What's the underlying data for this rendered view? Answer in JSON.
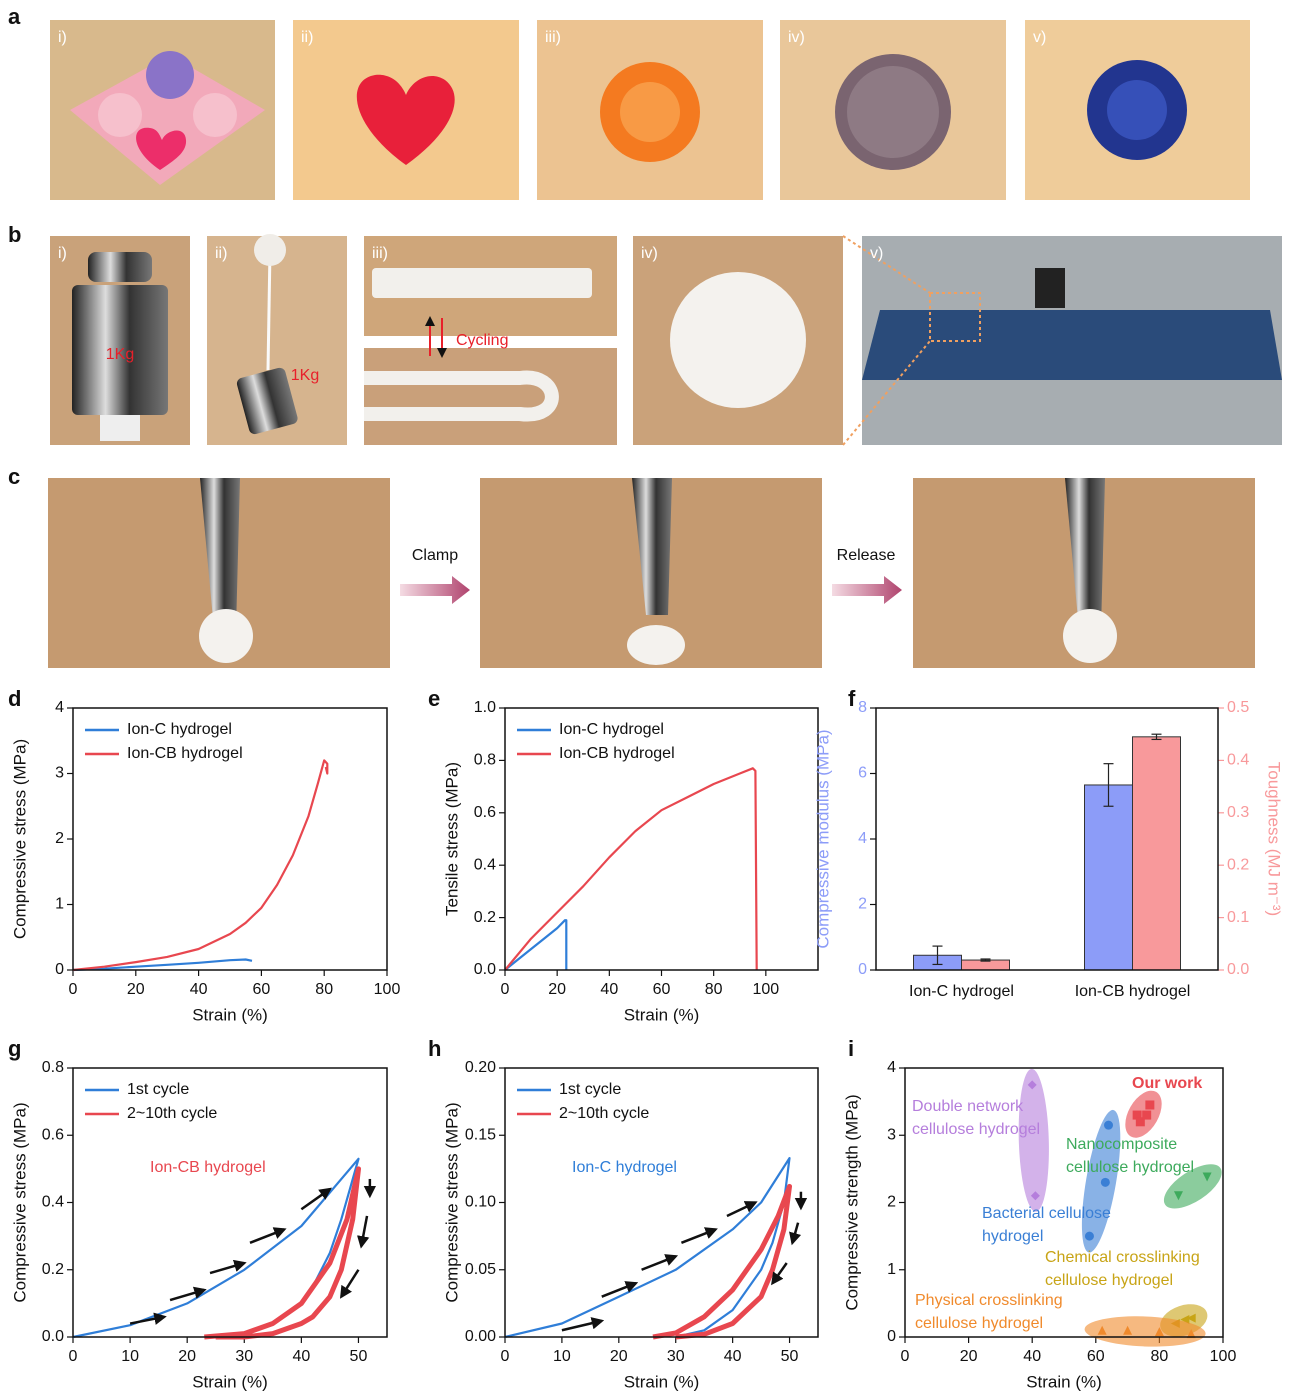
{
  "panels": {
    "a": {
      "letter": "a",
      "labels": [
        "i)",
        "ii)",
        "iii)",
        "iv)",
        "v)"
      ]
    },
    "b": {
      "letter": "b",
      "labels": [
        "i)",
        "ii)",
        "iii)",
        "iv)",
        "v)"
      ],
      "weight_label_1": "1Kg",
      "weight_label_2": "1Kg",
      "cycling": "Cycling"
    },
    "c": {
      "letter": "c",
      "clamp": "Clamp",
      "release": "Release"
    }
  },
  "chart_data": [
    {
      "type": "line",
      "panel": "d",
      "xlabel": "Strain (%)",
      "ylabel": "Compressive stress (MPa)",
      "xlim": [
        0,
        100
      ],
      "xticks": [
        0,
        20,
        40,
        60,
        80,
        100
      ],
      "ylim": [
        0,
        4
      ],
      "yticks": [
        0,
        1,
        2,
        3,
        4
      ],
      "legend": "upper left",
      "series": [
        {
          "name": "Ion-C hydrogel",
          "color": "#2f7ed8",
          "x": [
            0,
            10,
            20,
            30,
            40,
            50,
            55,
            57
          ],
          "values": [
            0,
            0.02,
            0.05,
            0.08,
            0.11,
            0.15,
            0.16,
            0.14
          ]
        },
        {
          "name": "Ion-CB hydrogel",
          "color": "#e8474f",
          "x": [
            0,
            10,
            20,
            30,
            40,
            50,
            55,
            60,
            65,
            70,
            75,
            78,
            80,
            81,
            81,
            80.5
          ],
          "values": [
            0,
            0.05,
            0.12,
            0.2,
            0.32,
            0.55,
            0.72,
            0.95,
            1.3,
            1.75,
            2.35,
            2.85,
            3.2,
            3.15,
            3.0,
            3.1
          ]
        }
      ]
    },
    {
      "type": "line",
      "panel": "e",
      "xlabel": "Strain (%)",
      "ylabel": "Tensile stress (MPa)",
      "xlim": [
        0,
        120
      ],
      "xticks": [
        0,
        20,
        40,
        60,
        80,
        100
      ],
      "ylim": [
        0,
        1
      ],
      "yticks": [
        {
          "value": 0,
          "label": "0.0"
        },
        0.2,
        0.4,
        0.6,
        0.8,
        {
          "value": 1,
          "label": "1.0"
        }
      ],
      "legend": "upper left",
      "series": [
        {
          "name": "Ion-C hydrogel",
          "color": "#2f7ed8",
          "x": [
            0,
            5,
            10,
            15,
            20,
            23,
            23.5,
            23.5
          ],
          "values": [
            0,
            0.04,
            0.08,
            0.12,
            0.16,
            0.19,
            0.19,
            0
          ]
        },
        {
          "name": "Ion-CB hydrogel",
          "color": "#e8474f",
          "x": [
            0,
            10,
            20,
            30,
            40,
            50,
            60,
            70,
            80,
            90,
            95,
            96,
            96.5
          ],
          "values": [
            0,
            0.12,
            0.22,
            0.32,
            0.43,
            0.53,
            0.61,
            0.66,
            0.71,
            0.75,
            0.77,
            0.76,
            0
          ]
        }
      ]
    },
    {
      "type": "bar",
      "panel": "f",
      "ylabel": "Compressive modulus (MPa)",
      "y2label": "Toughness (MJ m⁻³)",
      "categories": [
        "Ion-C hydrogel",
        "Ion-CB hydrogel"
      ],
      "ylim": [
        0,
        8
      ],
      "yticks": [
        0,
        2,
        4,
        6,
        8
      ],
      "y2lim": [
        0,
        0.5
      ],
      "y2ticks": [
        {
          "value": 0,
          "label": "0.0"
        },
        0.1,
        0.2,
        0.3,
        0.4,
        0.5
      ],
      "series": [
        {
          "color": "#8c9cf8",
          "values": [
            0.45,
            5.65
          ],
          "errors": [
            0.28,
            0.65
          ]
        },
        {
          "color": "#f8999b",
          "axis": "y2",
          "values": [
            0.019,
            0.445
          ],
          "errors": [
            0.002,
            0.005
          ]
        }
      ]
    },
    {
      "type": "line",
      "panel": "g",
      "xlabel": "Strain (%)",
      "ylabel": "Compressive stress (MPa)",
      "xlim": [
        0,
        55
      ],
      "xticks": [
        0,
        10,
        20,
        30,
        40,
        50
      ],
      "ylim": [
        0,
        0.8
      ],
      "yticks": [
        {
          "value": 0,
          "label": "0.0"
        },
        0.2,
        0.4,
        0.6,
        0.8
      ],
      "legend": "upper left",
      "annotation": {
        "text": "Ion-CB hydrogel",
        "color": "#e8474f"
      },
      "series": [
        {
          "name": "1st cycle",
          "color": "#2f7ed8",
          "x": [
            0,
            10,
            20,
            30,
            40,
            50,
            47,
            45,
            42,
            40,
            35,
            30,
            25,
            24
          ],
          "values": [
            0,
            0.035,
            0.1,
            0.2,
            0.33,
            0.53,
            0.35,
            0.25,
            0.15,
            0.1,
            0.04,
            0.01,
            0,
            0
          ]
        },
        {
          "name": "2~10th cycle",
          "color": "#e8474f",
          "x": [
            23,
            30,
            35,
            40,
            45,
            48,
            50,
            49,
            47,
            45,
            42,
            40,
            35,
            30,
            25
          ],
          "values": [
            0,
            0.01,
            0.04,
            0.1,
            0.22,
            0.35,
            0.5,
            0.35,
            0.2,
            0.12,
            0.06,
            0.04,
            0.01,
            0,
            0
          ]
        }
      ]
    },
    {
      "type": "line",
      "panel": "h",
      "xlabel": "Strain (%)",
      "ylabel": "Compressive stress (MPa)",
      "xlim": [
        0,
        55
      ],
      "xticks": [
        0,
        10,
        20,
        30,
        40,
        50
      ],
      "ylim": [
        0,
        0.2
      ],
      "yticks": [
        {
          "value": 0,
          "label": "0.00"
        },
        {
          "value": 0.05,
          "label": "0.05"
        },
        {
          "value": 0.1,
          "label": "0.10"
        },
        {
          "value": 0.15,
          "label": "0.15"
        },
        {
          "value": 0.2,
          "label": "0.20"
        }
      ],
      "legend": "upper left",
      "annotation": {
        "text": "Ion-C hydrogel",
        "color": "#2f7ed8"
      },
      "series": [
        {
          "name": "1st cycle",
          "color": "#2f7ed8",
          "x": [
            0,
            10,
            20,
            30,
            40,
            45,
            50,
            49,
            47,
            45,
            40,
            35,
            30
          ],
          "values": [
            0,
            0.01,
            0.03,
            0.05,
            0.08,
            0.1,
            0.133,
            0.1,
            0.07,
            0.05,
            0.02,
            0.005,
            0
          ]
        },
        {
          "name": "2~10th cycle",
          "color": "#e8474f",
          "x": [
            26,
            30,
            35,
            40,
            45,
            48,
            50,
            49,
            47,
            45,
            40,
            35,
            30
          ],
          "values": [
            0,
            0.003,
            0.015,
            0.035,
            0.065,
            0.09,
            0.112,
            0.08,
            0.05,
            0.03,
            0.01,
            0.002,
            0
          ]
        }
      ]
    },
    {
      "type": "scatter",
      "panel": "i",
      "xlabel": "Strain (%)",
      "ylabel": "Compressive strength (MPa)",
      "xlim": [
        0,
        100
      ],
      "xticks": [
        0,
        20,
        40,
        60,
        80,
        100
      ],
      "ylim": [
        0,
        4
      ],
      "yticks": [
        0,
        1,
        2,
        3,
        4
      ],
      "series": [
        {
          "label": [
            "Double network",
            "cellulose hydrogel"
          ],
          "color": "#b57edc",
          "marker": "diamond",
          "x": [
            40,
            41
          ],
          "values": [
            3.75,
            2.1
          ]
        },
        {
          "label": [
            "Our work"
          ],
          "color": "#e8474f",
          "marker": "square",
          "x": [
            73,
            74,
            76,
            77
          ],
          "values": [
            3.3,
            3.2,
            3.3,
            3.45
          ]
        },
        {
          "label": [
            "Nanocomposite",
            "cellulose hydrogel"
          ],
          "color": "#3daa5c",
          "marker": "triangle-down",
          "x": [
            86,
            95
          ],
          "values": [
            2.1,
            2.38
          ]
        },
        {
          "label": [
            "Bacterial cellulose",
            "hydrogel"
          ],
          "color": "#3a7fd5",
          "marker": "circle",
          "x": [
            58,
            63,
            64
          ],
          "values": [
            1.5,
            2.3,
            3.15
          ]
        },
        {
          "label": [
            "Chemical crosslinking",
            "cellulose hydrogel"
          ],
          "color": "#c8a416",
          "marker": "triangle-left",
          "x": [
            85,
            88,
            90
          ],
          "values": [
            0.2,
            0.26,
            0.28
          ]
        },
        {
          "label": [
            "Physical crosslinking",
            "cellulose hydrogel"
          ],
          "color": "#f08a2c",
          "marker": "triangle",
          "x": [
            62,
            70,
            80,
            90
          ],
          "values": [
            0.1,
            0.1,
            0.08,
            0.05
          ]
        }
      ]
    }
  ]
}
